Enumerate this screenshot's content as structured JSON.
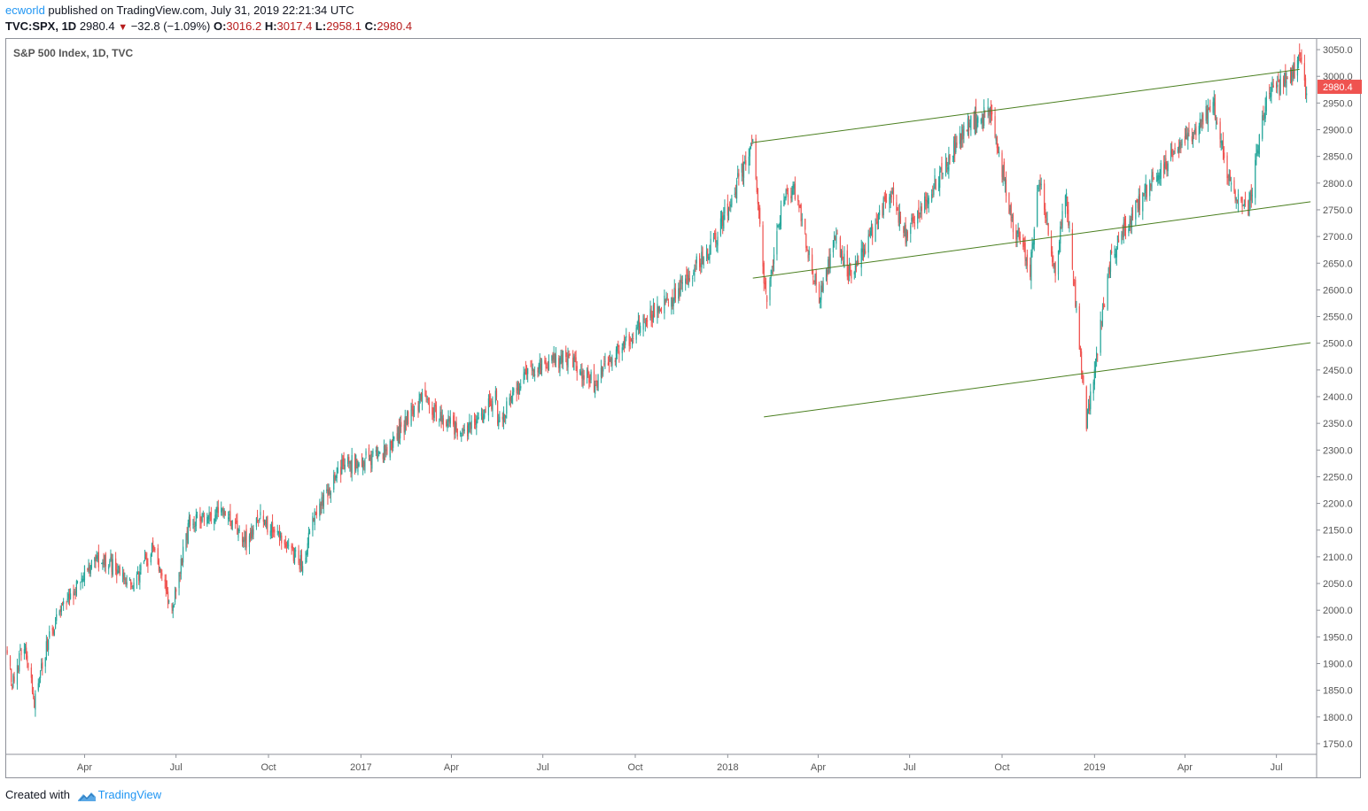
{
  "header": {
    "user": "ecworld",
    "published_text": " published on TradingView.com, July 31, 2019 22:21:34 UTC",
    "symbol": "TVC:SPX, 1D",
    "last": "2980.4",
    "change": "−32.8 (−1.09%)",
    "open_label": "O:",
    "open": "3016.2",
    "high_label": "H:",
    "high": "3017.4",
    "low_label": "L:",
    "low": "2958.1",
    "close_label": "C:",
    "close": "2980.4"
  },
  "footer": {
    "created_with": "Created with",
    "brand": "TradingView"
  },
  "colors": {
    "up": "#26a69a",
    "down": "#ef5350",
    "trendline": "#4a7f1f",
    "price_tag": "#ef5350",
    "axis_text": "#555555"
  },
  "chart_data": {
    "type": "candlestick",
    "title": "S&P 500 Index, 1D, TVC",
    "ylim": [
      1730,
      3070
    ],
    "y_ticks": [
      1750,
      1800,
      1850,
      1900,
      1950,
      2000,
      2050,
      2100,
      2150,
      2200,
      2250,
      2300,
      2350,
      2400,
      2450,
      2500,
      2550,
      2600,
      2650,
      2700,
      2750,
      2800,
      2850,
      2900,
      2950,
      3000,
      3050
    ],
    "y_tick_labels": [
      "1750.0",
      "1800.0",
      "1850.0",
      "1900.0",
      "1950.0",
      "2000.0",
      "2050.0",
      "2100.0",
      "2150.0",
      "2200.0",
      "2250.0",
      "2300.0",
      "2350.0",
      "2400.0",
      "2450.0",
      "2500.0",
      "2550.0",
      "2600.0",
      "2650.0",
      "2700.0",
      "2750.0",
      "2800.0",
      "2850.0",
      "2900.0",
      "2950.0",
      "3000.0",
      "3050.0"
    ],
    "xlim": [
      "2016-01-14",
      "2019-08-10"
    ],
    "x_ticks": [
      {
        "date": "2016-04-01",
        "label": "Apr"
      },
      {
        "date": "2016-07-01",
        "label": "Jul"
      },
      {
        "date": "2016-10-01",
        "label": "Oct"
      },
      {
        "date": "2017-01-01",
        "label": "2017"
      },
      {
        "date": "2017-04-01",
        "label": "Apr"
      },
      {
        "date": "2017-07-01",
        "label": "Jul"
      },
      {
        "date": "2017-10-01",
        "label": "Oct"
      },
      {
        "date": "2018-01-01",
        "label": "2018"
      },
      {
        "date": "2018-04-01",
        "label": "Apr"
      },
      {
        "date": "2018-07-01",
        "label": "Jul"
      },
      {
        "date": "2018-10-01",
        "label": "Oct"
      },
      {
        "date": "2019-01-01",
        "label": "2019"
      },
      {
        "date": "2019-04-01",
        "label": "Apr"
      },
      {
        "date": "2019-07-01",
        "label": "Jul"
      }
    ],
    "last_price": 2980.4,
    "last_price_label": "2980.4",
    "price_path": [
      {
        "date": "2016-01-15",
        "close": 1920
      },
      {
        "date": "2016-01-20",
        "close": 1860
      },
      {
        "date": "2016-02-01",
        "close": 1940
      },
      {
        "date": "2016-02-11",
        "close": 1830
      },
      {
        "date": "2016-02-25",
        "close": 1950
      },
      {
        "date": "2016-03-10",
        "close": 2000
      },
      {
        "date": "2016-04-01",
        "close": 2070
      },
      {
        "date": "2016-04-20",
        "close": 2100
      },
      {
        "date": "2016-05-19",
        "close": 2040
      },
      {
        "date": "2016-06-08",
        "close": 2115
      },
      {
        "date": "2016-06-27",
        "close": 2000
      },
      {
        "date": "2016-07-14",
        "close": 2165
      },
      {
        "date": "2016-08-15",
        "close": 2190
      },
      {
        "date": "2016-09-09",
        "close": 2130
      },
      {
        "date": "2016-09-22",
        "close": 2175
      },
      {
        "date": "2016-11-04",
        "close": 2085
      },
      {
        "date": "2016-11-16",
        "close": 2180
      },
      {
        "date": "2016-12-13",
        "close": 2270
      },
      {
        "date": "2017-01-26",
        "close": 2295
      },
      {
        "date": "2017-03-01",
        "close": 2395
      },
      {
        "date": "2017-04-13",
        "close": 2330
      },
      {
        "date": "2017-05-16",
        "close": 2400
      },
      {
        "date": "2017-05-17",
        "close": 2355
      },
      {
        "date": "2017-06-19",
        "close": 2450
      },
      {
        "date": "2017-07-27",
        "close": 2475
      },
      {
        "date": "2017-08-21",
        "close": 2425
      },
      {
        "date": "2017-09-29",
        "close": 2520
      },
      {
        "date": "2017-11-07",
        "close": 2590
      },
      {
        "date": "2017-12-18",
        "close": 2690
      },
      {
        "date": "2018-01-26",
        "close": 2872
      },
      {
        "date": "2018-02-08",
        "close": 2580
      },
      {
        "date": "2018-02-26",
        "close": 2780
      },
      {
        "date": "2018-03-09",
        "close": 2785
      },
      {
        "date": "2018-04-02",
        "close": 2580
      },
      {
        "date": "2018-04-18",
        "close": 2700
      },
      {
        "date": "2018-05-03",
        "close": 2625
      },
      {
        "date": "2018-06-12",
        "close": 2785
      },
      {
        "date": "2018-06-27",
        "close": 2700
      },
      {
        "date": "2018-08-29",
        "close": 2915
      },
      {
        "date": "2018-09-20",
        "close": 2930
      },
      {
        "date": "2018-10-11",
        "close": 2730
      },
      {
        "date": "2018-10-29",
        "close": 2640
      },
      {
        "date": "2018-11-07",
        "close": 2810
      },
      {
        "date": "2018-11-23",
        "close": 2630
      },
      {
        "date": "2018-12-03",
        "close": 2790
      },
      {
        "date": "2018-12-24",
        "close": 2350
      },
      {
        "date": "2019-01-18",
        "close": 2670
      },
      {
        "date": "2019-02-22",
        "close": 2790
      },
      {
        "date": "2019-04-30",
        "close": 2945
      },
      {
        "date": "2019-05-13",
        "close": 2810
      },
      {
        "date": "2019-06-03",
        "close": 2745
      },
      {
        "date": "2019-06-20",
        "close": 2955
      },
      {
        "date": "2019-07-26",
        "close": 3025
      },
      {
        "date": "2019-07-31",
        "close": 2980.4
      }
    ],
    "trendlines": [
      {
        "start": {
          "date": "2018-01-26",
          "value": 2876
        },
        "end": {
          "date": "2019-07-24",
          "value": 3013
        }
      },
      {
        "start": {
          "date": "2018-01-26",
          "value": 2622
        },
        "end": {
          "date": "2019-08-04",
          "value": 2765
        }
      },
      {
        "start": {
          "date": "2018-02-06",
          "value": 2362
        },
        "end": {
          "date": "2019-08-04",
          "value": 2501
        }
      }
    ]
  }
}
